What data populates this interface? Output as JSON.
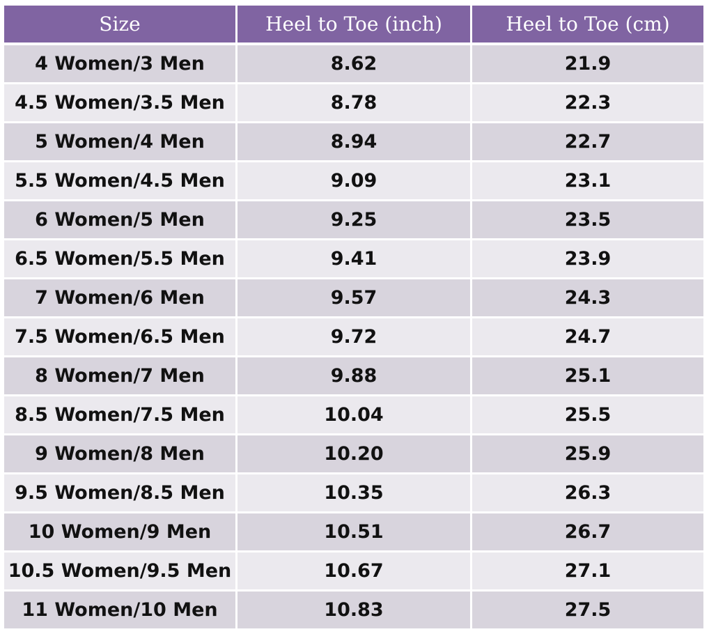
{
  "table": {
    "headers": [
      "Size",
      "Heel to Toe (inch)",
      "Heel to Toe (cm)"
    ],
    "rows": [
      [
        "4 Women/3 Men",
        "8.62",
        "21.9"
      ],
      [
        "4.5 Women/3.5 Men",
        "8.78",
        "22.3"
      ],
      [
        "5 Women/4 Men",
        "8.94",
        "22.7"
      ],
      [
        "5.5 Women/4.5 Men",
        "9.09",
        "23.1"
      ],
      [
        "6 Women/5 Men",
        "9.25",
        "23.5"
      ],
      [
        "6.5 Women/5.5 Men",
        "9.41",
        "23.9"
      ],
      [
        "7 Women/6 Men",
        "9.57",
        "24.3"
      ],
      [
        "7.5 Women/6.5 Men",
        "9.72",
        "24.7"
      ],
      [
        "8 Women/7 Men",
        "9.88",
        "25.1"
      ],
      [
        "8.5 Women/7.5 Men",
        "10.04",
        "25.5"
      ],
      [
        "9 Women/8 Men",
        "10.20",
        "25.9"
      ],
      [
        "9.5 Women/8.5 Men",
        "10.35",
        "26.3"
      ],
      [
        "10 Women/9 Men",
        "10.51",
        "26.7"
      ],
      [
        "10.5 Women/9.5 Men",
        "10.67",
        "27.1"
      ],
      [
        "11 Women/10 Men",
        "10.83",
        "27.5"
      ]
    ]
  },
  "colors": {
    "header_bg": "#8064a2",
    "header_text": "#ffffff",
    "row_dark": "#d8d4dd",
    "row_light": "#ebe9ee"
  }
}
